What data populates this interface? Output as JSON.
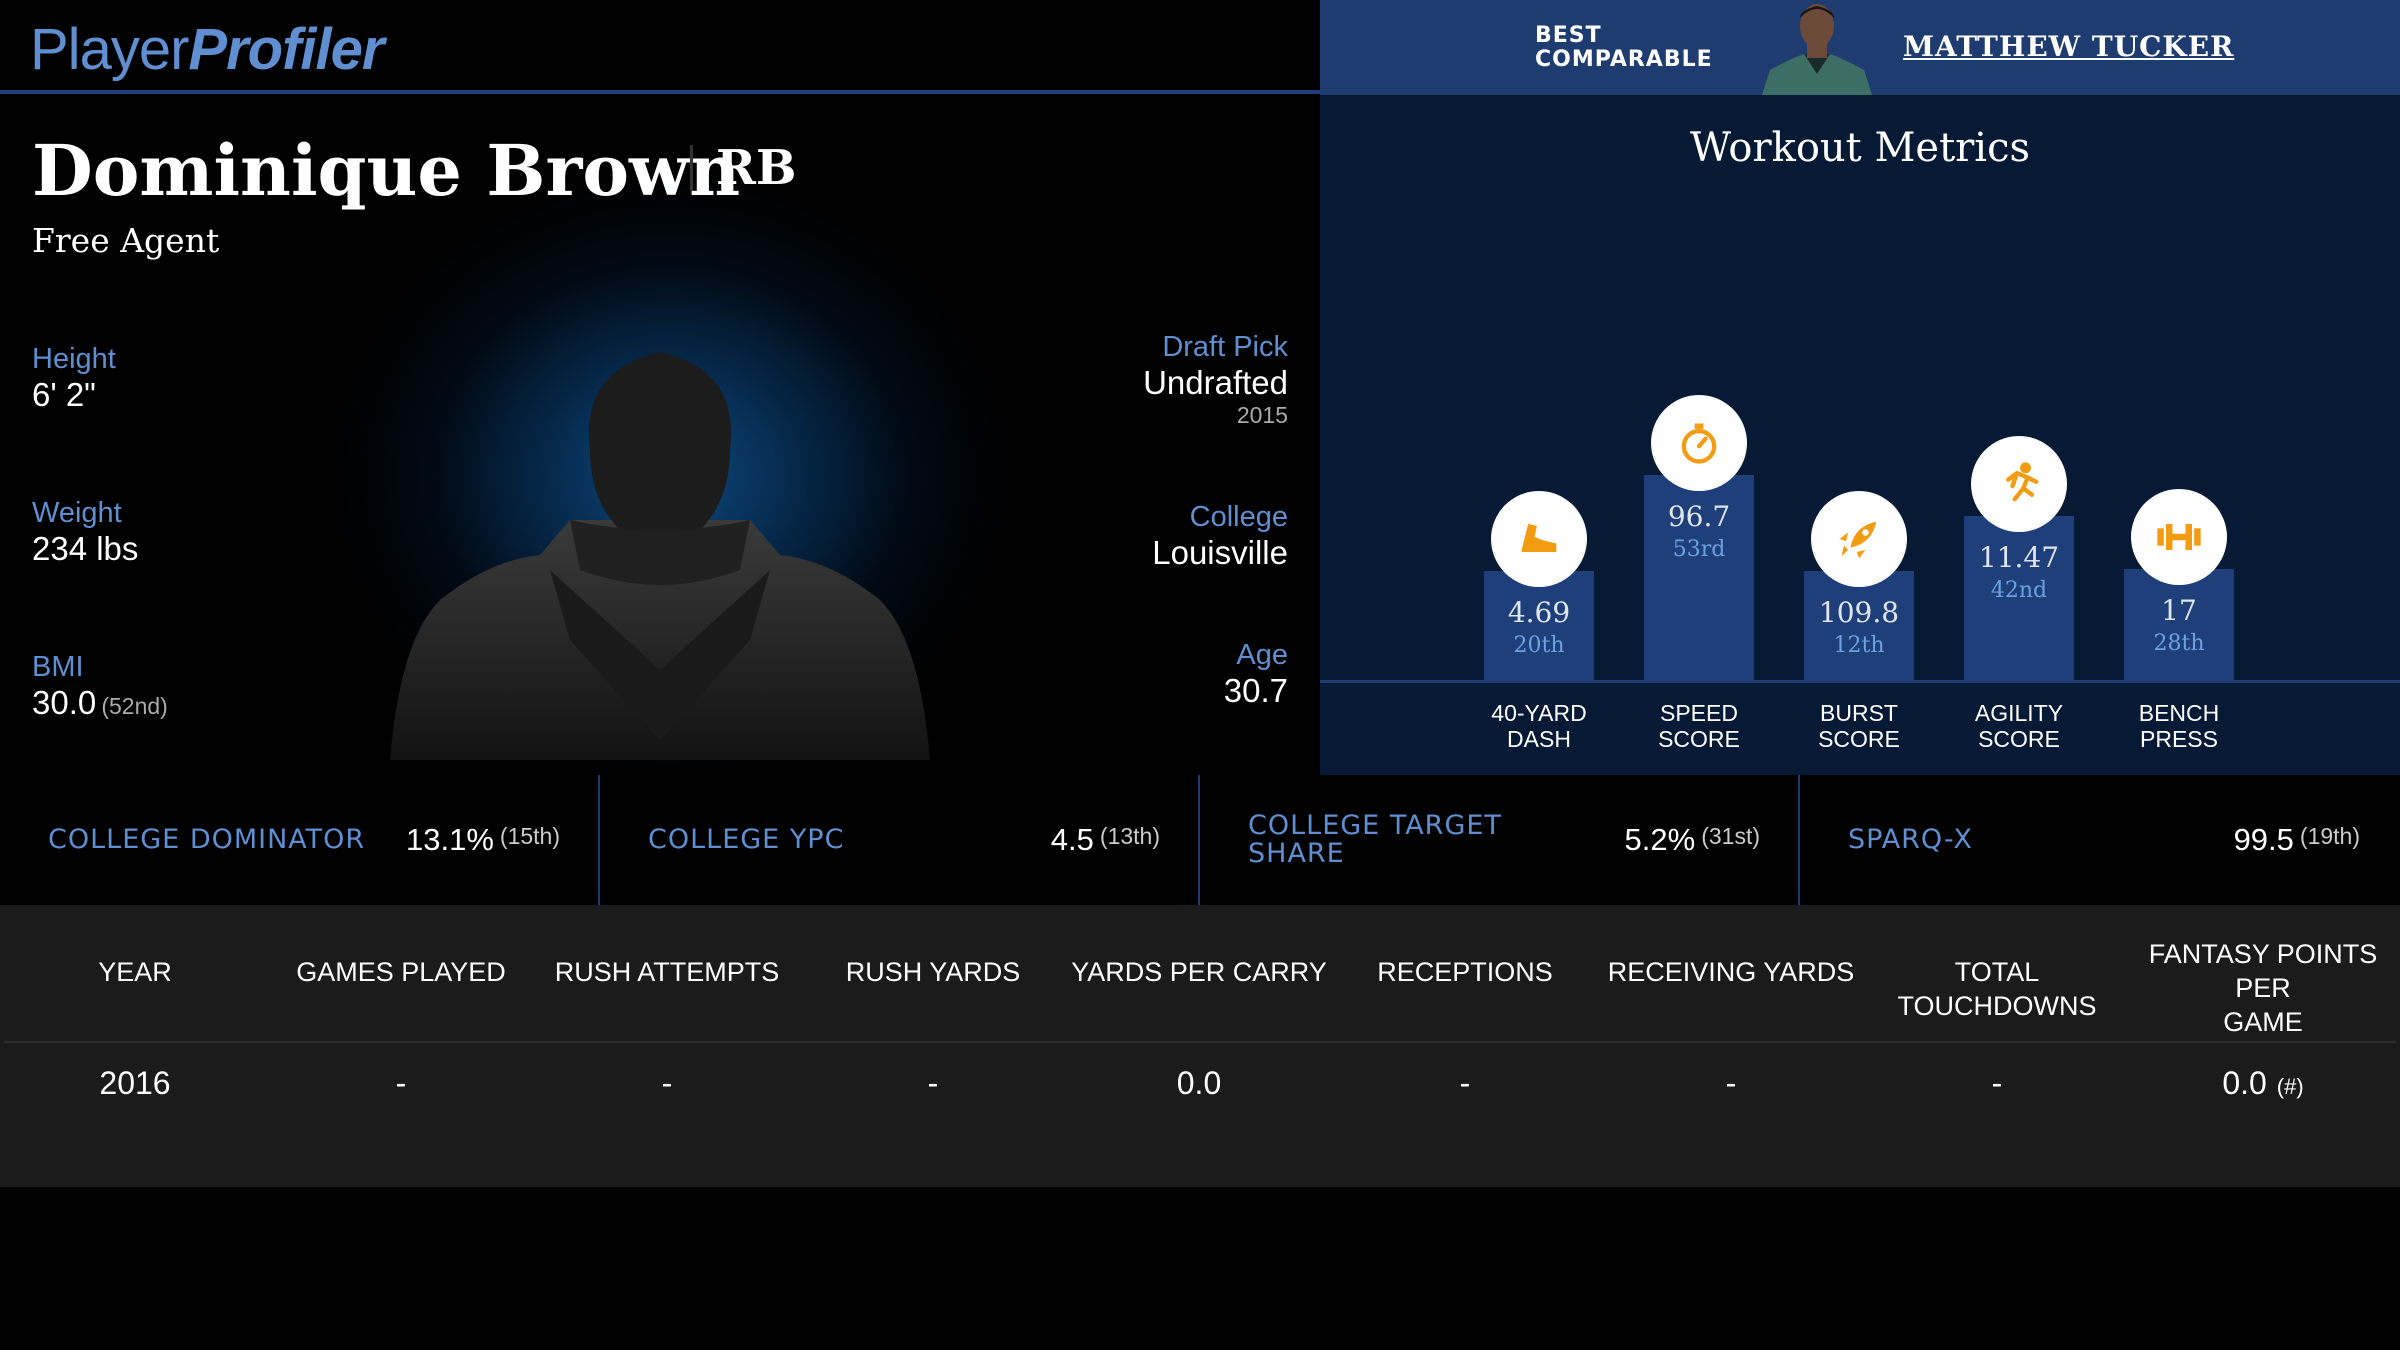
{
  "brand": {
    "part1": "Player",
    "part2": "Profiler"
  },
  "comparable": {
    "label_line1": "BEST",
    "label_line2": "COMPARABLE",
    "name": "MATTHEW TUCKER"
  },
  "player": {
    "name": "Dominique Brown",
    "position": "RB",
    "status": "Free Agent",
    "height": {
      "label": "Height",
      "value": "6' 2\""
    },
    "weight": {
      "label": "Weight",
      "value": "234 lbs"
    },
    "bmi": {
      "label": "BMI",
      "value": "30.0",
      "rank": "(52nd)"
    },
    "draft_pick": {
      "label": "Draft Pick",
      "value": "Undrafted",
      "year": "2015"
    },
    "college": {
      "label": "College",
      "value": "Louisville"
    },
    "age": {
      "label": "Age",
      "value": "30.7"
    }
  },
  "workout": {
    "title": "Workout Metrics",
    "metrics": [
      {
        "value": "4.69",
        "rank": "20th",
        "label1": "40-YARD",
        "label2": "DASH",
        "icon": "shoe-icon",
        "level": 53
      },
      {
        "value": "96.7",
        "rank": "53rd",
        "label1": "SPEED",
        "label2": "SCORE",
        "icon": "stopwatch-icon",
        "level": 100
      },
      {
        "value": "109.8",
        "rank": "12th",
        "label1": "BURST",
        "label2": "SCORE",
        "icon": "rocket-icon",
        "level": 53
      },
      {
        "value": "11.47",
        "rank": "42nd",
        "label1": "AGILITY",
        "label2": "SCORE",
        "icon": "runner-icon",
        "level": 80
      },
      {
        "value": "17",
        "rank": "28th",
        "label1": "BENCH",
        "label2": "PRESS",
        "icon": "dumbbell-icon",
        "level": 54
      }
    ]
  },
  "stats": [
    {
      "label": "COLLEGE DOMINATOR",
      "label2": "",
      "value": "13.1%",
      "rank": "(15th)"
    },
    {
      "label": "COLLEGE YPC",
      "label2": "",
      "value": "4.5",
      "rank": "(13th)"
    },
    {
      "label": "COLLEGE TARGET",
      "label2": "SHARE",
      "value": "5.2%",
      "rank": "(31st)"
    },
    {
      "label": "SPARQ-X",
      "label2": "",
      "value": "99.5",
      "rank": "(19th)"
    }
  ],
  "table": {
    "headers": [
      "YEAR",
      "GAMES PLAYED",
      "RUSH ATTEMPTS",
      "RUSH YARDS",
      "YARDS PER CARRY",
      "RECEPTIONS",
      "RECEIVING YARDS",
      "TOTAL TOUCHDOWNS",
      "FANTASY POINTS PER",
      "GAME"
    ],
    "row": [
      "2016",
      "-",
      "-",
      "-",
      "0.0",
      "-",
      "-",
      "-",
      "0.0",
      "(#)"
    ]
  },
  "colors": {
    "accent": "#5f8fd1",
    "bar": "#1f3f7a",
    "icon": "#f39c12",
    "panel": "#061a36"
  }
}
